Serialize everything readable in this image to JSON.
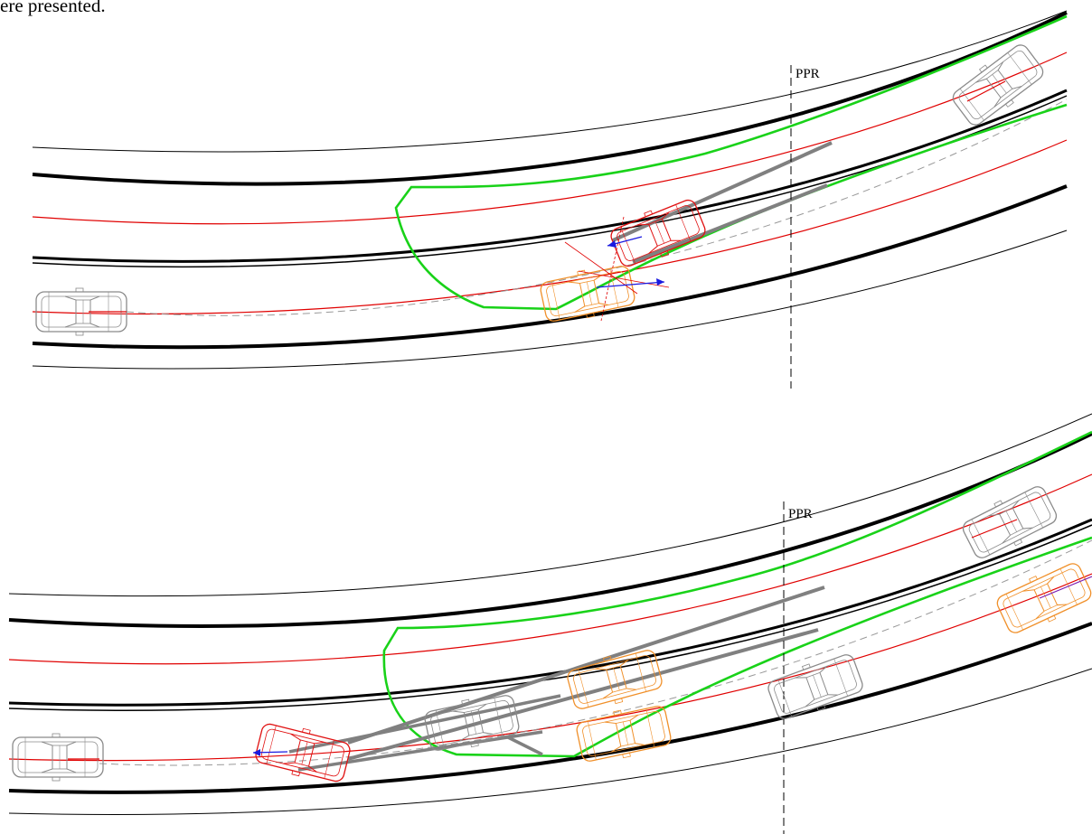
{
  "top_fragment": "ere presented.",
  "panels": [
    {
      "id": "scenario-1",
      "reference_line_label": "PPR"
    },
    {
      "id": "scenario-2",
      "reference_line_label": "PPR"
    }
  ],
  "colors": {
    "road_edge": "#000000",
    "road_shoulder": "#333333",
    "lane_path": "#e00000",
    "envelope": "#19d219",
    "skid_marks": "#808080",
    "vehicle_neutral": "#8a8a8a",
    "vehicle_striking": "#e01010",
    "vehicle_struck": "#f0902a",
    "velocity_vector": "#1a1ae0"
  }
}
